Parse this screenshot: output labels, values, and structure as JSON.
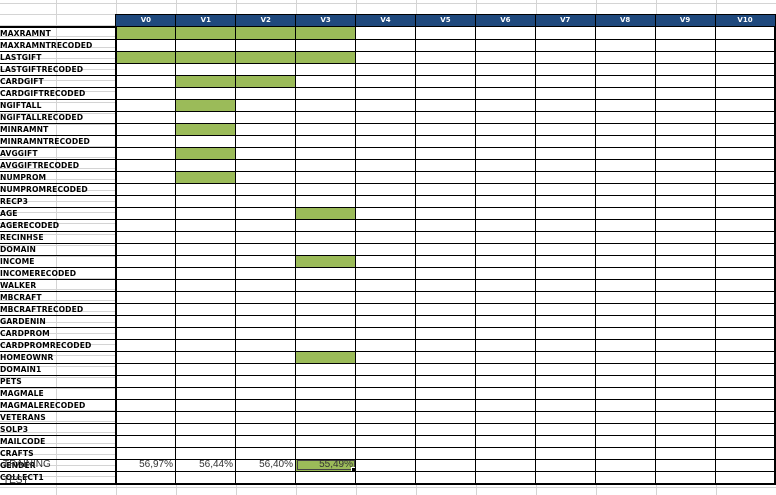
{
  "columns": [
    "V0",
    "V1",
    "V2",
    "V3",
    "V4",
    "V5",
    "V6",
    "V7",
    "V8",
    "V9",
    "V10"
  ],
  "rows": [
    {
      "label": "MAXRAMNT",
      "on": [
        0,
        1,
        2,
        3
      ]
    },
    {
      "label": "MAXRAMNTRECODED",
      "on": []
    },
    {
      "label": "LASTGIFT",
      "on": [
        0,
        1,
        2,
        3
      ]
    },
    {
      "label": "LASTGIFTRECODED",
      "on": []
    },
    {
      "label": "CARDGIFT",
      "on": [
        1,
        2
      ]
    },
    {
      "label": "CARDGIFTRECODED",
      "on": []
    },
    {
      "label": "NGIFTALL",
      "on": [
        1
      ]
    },
    {
      "label": "NGIFTALLRECODED",
      "on": []
    },
    {
      "label": "MINRAMNT",
      "on": [
        1
      ]
    },
    {
      "label": "MINRAMNTRECODED",
      "on": []
    },
    {
      "label": "AVGGIFT",
      "on": [
        1
      ]
    },
    {
      "label": "AVGGIFTRECODED",
      "on": []
    },
    {
      "label": "NUMPROM",
      "on": [
        1
      ]
    },
    {
      "label": "NUMPROMRECODED",
      "on": []
    },
    {
      "label": "RECP3",
      "on": []
    },
    {
      "label": "AGE",
      "on": [
        3
      ]
    },
    {
      "label": "AGERECODED",
      "on": []
    },
    {
      "label": "RECINHSE",
      "on": []
    },
    {
      "label": "DOMAIN",
      "on": []
    },
    {
      "label": "INCOME",
      "on": [
        3
      ]
    },
    {
      "label": "INCOMERECODED",
      "on": []
    },
    {
      "label": "WALKER",
      "on": []
    },
    {
      "label": "MBCRAFT",
      "on": []
    },
    {
      "label": "MBCRAFTRECODED",
      "on": []
    },
    {
      "label": "GARDENIN",
      "on": []
    },
    {
      "label": "CARDPROM",
      "on": []
    },
    {
      "label": "CARDPROMRECODED",
      "on": []
    },
    {
      "label": "HOMEOWNR",
      "on": [
        3
      ]
    },
    {
      "label": "DOMAIN1",
      "on": []
    },
    {
      "label": "PETS",
      "on": []
    },
    {
      "label": "MAGMALE",
      "on": []
    },
    {
      "label": "MAGMALERECODED",
      "on": []
    },
    {
      "label": "VETERANS",
      "on": []
    },
    {
      "label": "SOLP3",
      "on": []
    },
    {
      "label": "MAILCODE",
      "on": []
    },
    {
      "label": "CRAFTS",
      "on": []
    },
    {
      "label": "GENDER",
      "on": [
        3
      ]
    },
    {
      "label": "COLLECT1",
      "on": []
    }
  ],
  "selected_cell": {
    "row": 36,
    "col": 3
  },
  "highlight_color": "#9bbb59",
  "header_color": "#1f497d",
  "results": [
    {
      "label": "TRAINING",
      "values": [
        "56,97%",
        "56,44%",
        "56,40%",
        "55,49%"
      ]
    },
    {
      "label": "TEST",
      "values": []
    }
  ]
}
